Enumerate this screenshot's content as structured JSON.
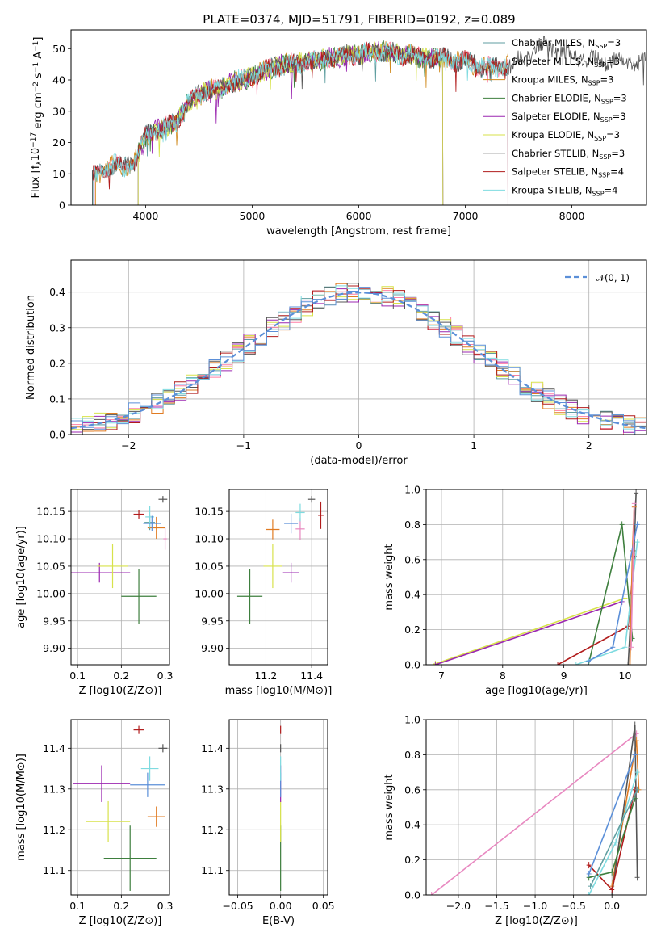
{
  "figure": {
    "title": "PLATE=0374, MJD=51791, FIBERID=0192, z=0.089"
  },
  "colors": {
    "Chabrier MILES": "#5f9ea0",
    "Salpeter MILES": "#ff7fa5",
    "Kroupa MILES": "#d08a1d",
    "Chabrier ELODIE": "#3e7f3e",
    "Salpeter ELODIE": "#9b27b0",
    "Kroupa ELODIE": "#d7e24a",
    "Chabrier STELIB": "#555555",
    "Salpeter STELIB": "#b11c1c",
    "Kroupa STELIB": "#7fdbe0",
    "orange": "#e07b22",
    "blue": "#5b8fd8",
    "pink": "#e888c0",
    "grey": "#777777",
    "normal": "#5b8fd8"
  },
  "chart_data": [
    {
      "id": "spectrum",
      "type": "line",
      "xlabel": "wavelength [Angstrom, rest frame]",
      "ylabel_parts": [
        "Flux [f",
        "λ",
        "10",
        "−17",
        " erg cm",
        "−2",
        " s",
        "−1",
        " A",
        "−1",
        "]"
      ],
      "xlim": [
        3300,
        8700
      ],
      "ylim": [
        0,
        56
      ],
      "xticks": [
        4000,
        5000,
        6000,
        7000,
        8000
      ],
      "yticks": [
        0,
        10,
        20,
        30,
        40,
        50
      ],
      "grid": false,
      "legend": "top-right",
      "continuum": {
        "x": [
          3500,
          3600,
          3700,
          3800,
          3900,
          4000,
          4100,
          4200,
          4300,
          4400,
          4500,
          4600,
          4700,
          4800,
          4900,
          5000,
          5100,
          5200,
          5300,
          5400,
          5500,
          5600,
          5700,
          5800,
          5900,
          6000,
          6100,
          6200,
          6300,
          6400,
          6500,
          6600,
          6700,
          6800,
          6900,
          7000,
          7100,
          7200,
          7300,
          7400,
          7500,
          7600,
          7700,
          7800,
          7900,
          8000,
          8100,
          8200,
          8300,
          8400,
          8500,
          8600,
          8700
        ],
        "y": [
          9,
          11,
          13,
          12,
          14,
          22,
          24,
          25,
          27,
          33,
          35,
          37,
          37,
          39,
          40,
          41,
          43,
          44,
          45,
          45,
          46,
          46,
          47,
          47,
          48,
          48,
          49,
          49,
          49,
          48,
          48,
          47,
          47,
          47,
          46,
          46,
          45,
          44,
          44,
          45,
          46,
          48,
          51,
          50,
          49,
          48,
          47,
          46,
          46,
          46,
          46,
          46,
          46
        ]
      },
      "series": [
        {
          "name": "Chabrier MILES",
          "nssp": "3",
          "color": "#5f9ea0",
          "start": 3500,
          "end": 7400
        },
        {
          "name": "Salpeter MILES",
          "nssp": "3",
          "color": "#ff7fa5",
          "start": 3520,
          "end": 7400
        },
        {
          "name": "Kroupa MILES",
          "nssp": "3",
          "color": "#d08a1d",
          "start": 3530,
          "end": 7400
        },
        {
          "name": "Chabrier ELODIE",
          "nssp": "3",
          "color": "#3e7f3e",
          "start": 3930,
          "end": 6790
        },
        {
          "name": "Salpeter ELODIE",
          "nssp": "3",
          "color": "#9b27b0",
          "start": 3930,
          "end": 6790
        },
        {
          "name": "Kroupa ELODIE",
          "nssp": "3",
          "color": "#d7e24a",
          "start": 3930,
          "end": 6790
        },
        {
          "name": "Chabrier STELIB",
          "nssp": "3",
          "color": "#555555",
          "start": 3500,
          "end": 8700
        },
        {
          "name": "Salpeter STELIB",
          "nssp": "4",
          "color": "#b11c1c",
          "start": 3510,
          "end": 7400
        },
        {
          "name": "Kroupa STELIB",
          "nssp": "4",
          "color": "#7fdbe0",
          "start": 3510,
          "end": 7400
        }
      ]
    },
    {
      "id": "residuals",
      "type": "area",
      "xlabel": "(data-model)/error",
      "ylabel": "Normed distribution",
      "xlim": [
        -2.5,
        2.5
      ],
      "ylim": [
        0,
        0.49
      ],
      "xticks": [
        -2,
        -1,
        0,
        1,
        2
      ],
      "yticks": [
        0.0,
        0.1,
        0.2,
        0.3,
        0.4
      ],
      "grid": true,
      "legend": "top-right",
      "normal_label": "𝒩(0, 1)",
      "bin_width": 0.1,
      "histogram_colors": [
        "#5f9ea0",
        "#ff7fa5",
        "#e07b22",
        "#d7e24a",
        "#9b27b0",
        "#555555",
        "#b11c1c",
        "#7fdbe0",
        "#5b8fd8"
      ]
    },
    {
      "id": "age-vs-Z",
      "type": "scatter",
      "xlabel": "Z [log10(Z/Z⊙)]",
      "ylabel": "age  [log10(age/yr)]",
      "xlim": [
        0.085,
        0.31
      ],
      "ylim": [
        9.87,
        10.19
      ],
      "xticks": [
        0.1,
        0.2,
        0.3
      ],
      "yticks": [
        9.9,
        9.95,
        10.0,
        10.05,
        10.1,
        10.15
      ],
      "grid": true,
      "points": [
        {
          "name": "Chabrier ELODIE",
          "color": "#3e7f3e",
          "x": 0.24,
          "y": 9.995,
          "xerr": 0.04,
          "yerr": 0.05
        },
        {
          "name": "Salpeter ELODIE",
          "color": "#9b27b0",
          "x": 0.15,
          "y": 10.038,
          "xerr": 0.07,
          "yerr": 0.018
        },
        {
          "name": "Kroupa ELODIE",
          "color": "#d7e24a",
          "x": 0.18,
          "y": 10.05,
          "xerr": 0.035,
          "yerr": 0.04
        },
        {
          "name": "Chabrier MILES",
          "color": "#5f9ea0",
          "x": 0.265,
          "y": 10.13,
          "xerr": 0.012,
          "yerr": 0.014
        },
        {
          "name": "Kroupa MILES",
          "color": "#e07b22",
          "x": 0.28,
          "y": 10.12,
          "xerr": 0.02,
          "yerr": 0.02
        },
        {
          "name": "Chabrier STELIB",
          "color": "#555555",
          "x": 0.295,
          "y": 10.172,
          "xerr": 0.01,
          "yerr": 0.006
        },
        {
          "name": "Salpeter STELIB",
          "color": "#b11c1c",
          "x": 0.24,
          "y": 10.145,
          "xerr": 0.012,
          "yerr": 0.008
        },
        {
          "name": "Kroupa STELIB",
          "color": "#7fdbe0",
          "x": 0.265,
          "y": 10.14,
          "xerr": 0.01,
          "yerr": 0.02
        },
        {
          "name": "blue",
          "color": "#5b8fd8",
          "x": 0.27,
          "y": 10.128,
          "xerr": 0.02,
          "yerr": 0.014
        },
        {
          "name": "pink",
          "color": "#e888c0",
          "x": 0.3,
          "y": 10.1,
          "xerr": 0.004,
          "yerr": 0.02
        }
      ]
    },
    {
      "id": "age-vs-mass",
      "type": "scatter",
      "xlabel": "mass [log10(M/M⊙)]",
      "ylabel": "",
      "xlim": [
        11.04,
        11.47
      ],
      "ylim": [
        9.87,
        10.19
      ],
      "xticks": [
        11.2,
        11.4
      ],
      "yticks": [
        9.9,
        9.95,
        10.0,
        10.05,
        10.1,
        10.15
      ],
      "grid": true,
      "points": [
        {
          "name": "Chabrier ELODIE",
          "color": "#3e7f3e",
          "x": 11.13,
          "y": 9.995,
          "xerr": 0.055,
          "yerr": 0.05
        },
        {
          "name": "Salpeter ELODIE",
          "color": "#9b27b0",
          "x": 11.31,
          "y": 10.038,
          "xerr": 0.035,
          "yerr": 0.018
        },
        {
          "name": "Kroupa ELODIE",
          "color": "#d7e24a",
          "x": 11.23,
          "y": 10.05,
          "xerr": 0.04,
          "yerr": 0.04
        },
        {
          "name": "blue",
          "color": "#5b8fd8",
          "x": 11.31,
          "y": 10.128,
          "xerr": 0.03,
          "yerr": 0.018
        },
        {
          "name": "Kroupa MILES",
          "color": "#e07b22",
          "x": 11.23,
          "y": 10.117,
          "xerr": 0.03,
          "yerr": 0.018
        },
        {
          "name": "pink",
          "color": "#e888c0",
          "x": 11.35,
          "y": 10.118,
          "xerr": 0.02,
          "yerr": 0.02
        },
        {
          "name": "Kroupa STELIB",
          "color": "#7fdbe0",
          "x": 11.35,
          "y": 10.148,
          "xerr": 0.02,
          "yerr": 0.016
        },
        {
          "name": "Chabrier STELIB",
          "color": "#555555",
          "x": 11.4,
          "y": 10.172,
          "xerr": 0.015,
          "yerr": 0.006
        },
        {
          "name": "Salpeter STELIB",
          "color": "#b11c1c",
          "x": 11.44,
          "y": 10.143,
          "xerr": 0.012,
          "yerr": 0.025
        }
      ]
    },
    {
      "id": "mass-weight-vs-age",
      "type": "line",
      "xlabel": "age  [log10(age/yr)]",
      "ylabel": "mass weight",
      "xlim": [
        6.75,
        10.35
      ],
      "ylim": [
        0,
        1.0
      ],
      "xticks": [
        7,
        8,
        9,
        10
      ],
      "yticks": [
        0.0,
        0.2,
        0.4,
        0.6,
        0.8,
        1.0
      ],
      "grid": true,
      "series": [
        {
          "name": "Kroupa ELODIE",
          "color": "#d7e24a",
          "x": [
            6.9,
            10.0
          ],
          "y": [
            0.005,
            0.38
          ]
        },
        {
          "name": "Salpeter ELODIE",
          "color": "#9b27b0",
          "x": [
            6.9,
            9.95
          ],
          "y": [
            0.0,
            0.36
          ]
        },
        {
          "name": "Chabrier ELODIE",
          "color": "#3e7f3e",
          "x": [
            9.4,
            9.95,
            10.12
          ],
          "y": [
            0.0,
            0.8,
            0.15
          ]
        },
        {
          "name": "Chabrier STELIB",
          "color": "#555555",
          "x": [
            10.05,
            10.15,
            10.18
          ],
          "y": [
            0.0,
            0.65,
            0.98
          ]
        },
        {
          "name": "Salpeter STELIB",
          "color": "#b11c1c",
          "x": [
            8.9,
            10.05,
            10.15
          ],
          "y": [
            0.0,
            0.22,
            0.62
          ]
        },
        {
          "name": "Kroupa STELIB",
          "color": "#7fdbe0",
          "x": [
            9.2,
            10.0,
            10.2
          ],
          "y": [
            0.0,
            0.1,
            0.7
          ]
        },
        {
          "name": "Kroupa MILES",
          "color": "#e07b22",
          "x": [
            10.08,
            10.12,
            10.15
          ],
          "y": [
            0.0,
            0.65,
            0.9
          ]
        },
        {
          "name": "blue",
          "color": "#5b8fd8",
          "x": [
            9.4,
            9.8,
            10.2
          ],
          "y": [
            0.02,
            0.1,
            0.8
          ]
        },
        {
          "name": "pink",
          "color": "#e888c0",
          "x": [
            10.1,
            10.15
          ],
          "y": [
            0.1,
            0.92
          ]
        }
      ]
    },
    {
      "id": "mass-vs-Z",
      "type": "scatter",
      "xlabel": "Z [log10(Z/Z⊙)]",
      "ylabel": "mass [log10(M/M⊙)]",
      "xlim": [
        0.085,
        0.31
      ],
      "ylim": [
        11.04,
        11.47
      ],
      "xticks": [
        0.1,
        0.2,
        0.3
      ],
      "yticks": [
        11.1,
        11.2,
        11.3,
        11.4
      ],
      "grid": true,
      "points": [
        {
          "name": "Chabrier ELODIE",
          "color": "#3e7f3e",
          "x": 0.22,
          "y": 11.13,
          "xerr": 0.06,
          "yerr": 0.08
        },
        {
          "name": "Salpeter ELODIE",
          "color": "#9b27b0",
          "x": 0.155,
          "y": 11.313,
          "xerr": 0.065,
          "yerr": 0.045
        },
        {
          "name": "Kroupa ELODIE",
          "color": "#d7e24a",
          "x": 0.17,
          "y": 11.22,
          "xerr": 0.05,
          "yerr": 0.05
        },
        {
          "name": "Kroupa MILES",
          "color": "#e07b22",
          "x": 0.28,
          "y": 11.232,
          "xerr": 0.02,
          "yerr": 0.025
        },
        {
          "name": "blue",
          "color": "#5b8fd8",
          "x": 0.26,
          "y": 11.31,
          "xerr": 0.04,
          "yerr": 0.03
        },
        {
          "name": "Kroupa STELIB",
          "color": "#7fdbe0",
          "x": 0.265,
          "y": 11.35,
          "xerr": 0.02,
          "yerr": 0.03
        },
        {
          "name": "Chabrier STELIB",
          "color": "#555555",
          "x": 0.295,
          "y": 11.4,
          "xerr": 0.01,
          "yerr": 0.01
        },
        {
          "name": "Salpeter STELIB",
          "color": "#b11c1c",
          "x": 0.24,
          "y": 11.445,
          "xerr": 0.012,
          "yerr": 0.01
        }
      ]
    },
    {
      "id": "mass-vs-EBV",
      "type": "scatter",
      "xlabel": "E(B-V)",
      "ylabel": "",
      "xlim": [
        -0.06,
        0.055
      ],
      "ylim": [
        11.04,
        11.47
      ],
      "xticks": [
        -0.05,
        0.0,
        0.05
      ],
      "xticklabels": [
        "−0.05",
        "0.00",
        "0.05"
      ],
      "yticks": [
        11.1,
        11.2,
        11.3,
        11.4
      ],
      "grid": true,
      "points": [
        {
          "name": "Chabrier ELODIE",
          "color": "#3e7f3e",
          "x": 0.0,
          "y": 11.13,
          "yerr": 0.08
        },
        {
          "name": "Kroupa ELODIE",
          "color": "#d7e24a",
          "x": 0.0,
          "y": 11.22,
          "yerr": 0.05
        },
        {
          "name": "Salpeter ELODIE",
          "color": "#9b27b0",
          "x": 0.0,
          "y": 11.313,
          "yerr": 0.045
        },
        {
          "name": "blue",
          "color": "#5b8fd8",
          "x": 0.0,
          "y": 11.31,
          "yerr": 0.03
        },
        {
          "name": "Kroupa STELIB",
          "color": "#7fdbe0",
          "x": 0.0,
          "y": 11.35,
          "yerr": 0.03
        },
        {
          "name": "Chabrier STELIB",
          "color": "#555555",
          "x": 0.0,
          "y": 11.4,
          "yerr": 0.01
        },
        {
          "name": "Salpeter STELIB",
          "color": "#b11c1c",
          "x": 0.0,
          "y": 11.445,
          "yerr": 0.01
        }
      ]
    },
    {
      "id": "mass-weight-vs-Z",
      "type": "line",
      "xlabel": "Z [log10(Z/Z⊙)]",
      "ylabel": "mass weight",
      "xlim": [
        -2.42,
        0.45
      ],
      "ylim": [
        0,
        1.0
      ],
      "xticks": [
        -2.0,
        -1.5,
        -1.0,
        -0.5,
        0.0
      ],
      "xticklabels": [
        "−2.0",
        "−1.5",
        "−1.0",
        "−0.5",
        "0.0"
      ],
      "yticks": [
        0.0,
        0.2,
        0.4,
        0.6,
        0.8,
        1.0
      ],
      "grid": true,
      "series": [
        {
          "name": "pink",
          "color": "#e888c0",
          "x": [
            -2.35,
            0.32
          ],
          "y": [
            0.0,
            0.92
          ]
        },
        {
          "name": "Kroupa MILES",
          "color": "#e07b22",
          "x": [
            0.0,
            0.32,
            0.35
          ],
          "y": [
            0.05,
            0.88,
            0.6
          ]
        },
        {
          "name": "Chabrier STELIB",
          "color": "#555555",
          "x": [
            0.0,
            0.3,
            0.33
          ],
          "y": [
            0.0,
            0.97,
            0.1
          ]
        },
        {
          "name": "Salpeter STELIB",
          "color": "#b11c1c",
          "x": [
            -0.3,
            0.0,
            0.3
          ],
          "y": [
            0.17,
            0.03,
            0.6
          ]
        },
        {
          "name": "Chabrier ELODIE",
          "color": "#3e7f3e",
          "x": [
            -0.3,
            0.0,
            0.3
          ],
          "y": [
            0.1,
            0.13,
            0.55
          ]
        },
        {
          "name": "Kroupa STELIB",
          "color": "#7fdbe0",
          "x": [
            -0.3,
            0.05,
            0.33
          ],
          "y": [
            0.0,
            0.3,
            0.7
          ]
        },
        {
          "name": "blue",
          "color": "#5b8fd8",
          "x": [
            -0.3,
            0.3
          ],
          "y": [
            0.12,
            0.8
          ]
        },
        {
          "name": "Chabrier MILES",
          "color": "#5f9ea0",
          "x": [
            -0.28,
            0.33
          ],
          "y": [
            0.05,
            0.6
          ]
        }
      ]
    }
  ]
}
